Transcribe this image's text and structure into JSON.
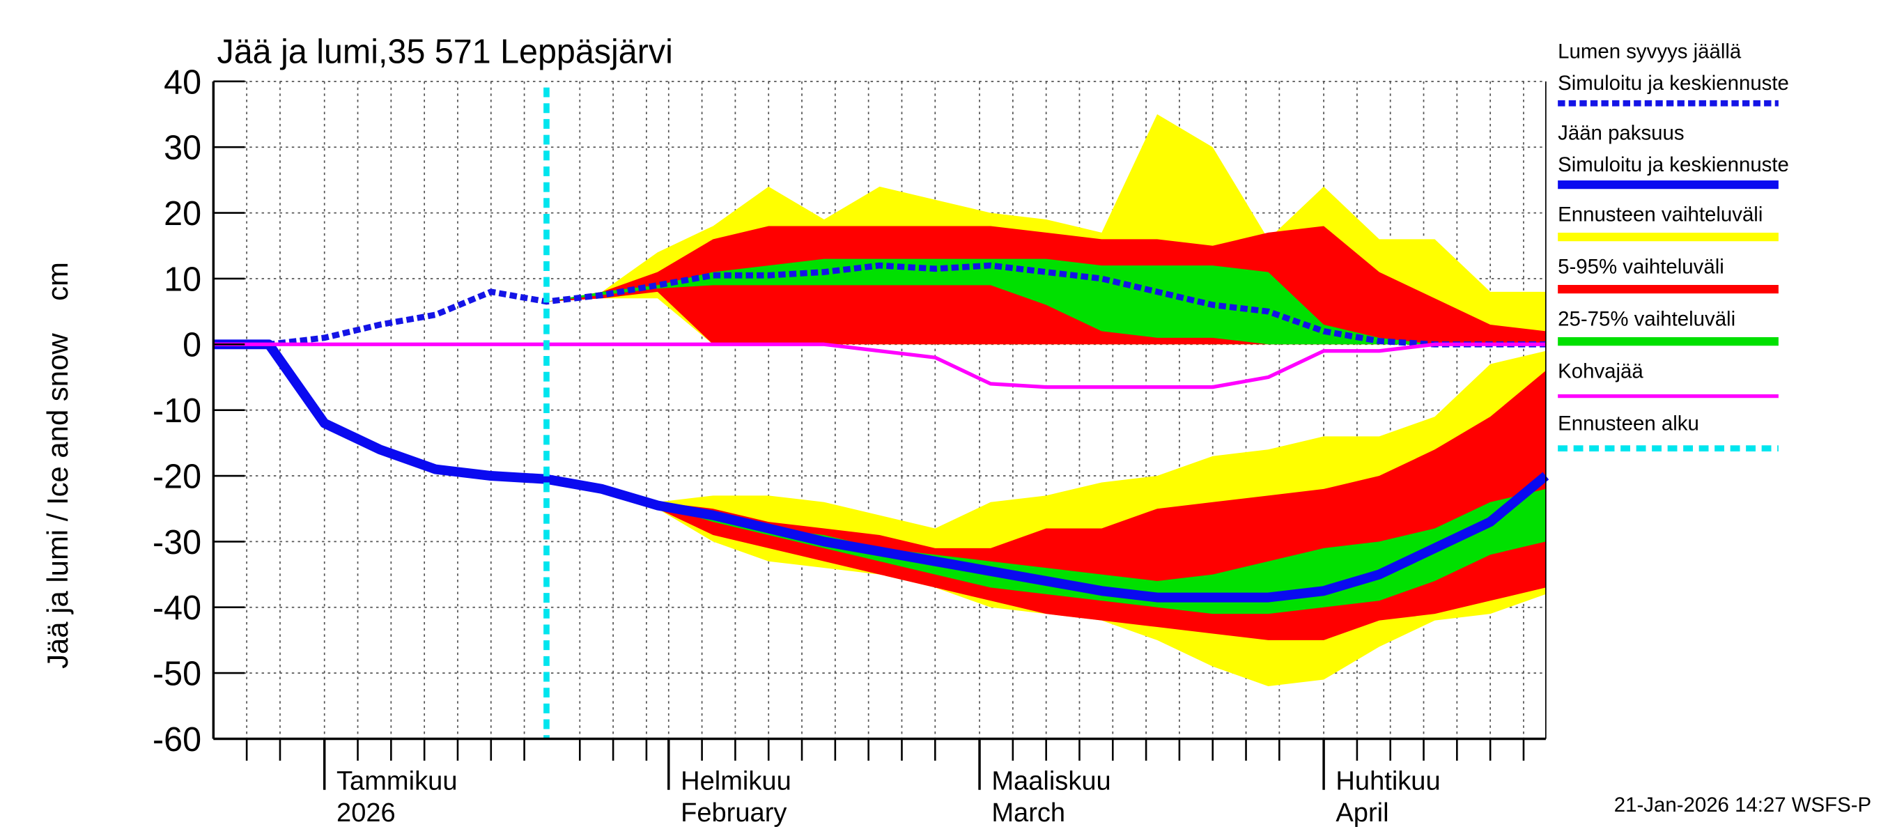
{
  "chart_data": {
    "type": "band-line",
    "title": "Jää ja lumi,35 571 Leppäsjärvi",
    "y_label": "Jää ja lumi / Ice and snow    cm",
    "footer": "21-Jan-2026 14:27 WSFS-P",
    "x": [
      0,
      5,
      10,
      15,
      20,
      25,
      30,
      35,
      40,
      45,
      50,
      55,
      60,
      65,
      70,
      75,
      80,
      85,
      90,
      95,
      100,
      105,
      110,
      115,
      120
    ],
    "xlim": [
      0,
      120
    ],
    "xticks": [
      {
        "value": 10,
        "label": "Tammikuu",
        "sublabel": "2026"
      },
      {
        "value": 41,
        "label": "Helmikuu",
        "sublabel": "February"
      },
      {
        "value": 69,
        "label": "Maaliskuu",
        "sublabel": "March"
      },
      {
        "value": 100,
        "label": "Huhtikuu",
        "sublabel": "April"
      }
    ],
    "xgrid": [
      3,
      6,
      13,
      16,
      19,
      22,
      25,
      28,
      33,
      36,
      39,
      44,
      47,
      50,
      53,
      56,
      59,
      62,
      65,
      72,
      75,
      78,
      81,
      84,
      87,
      90,
      93,
      96,
      103,
      106,
      109,
      112,
      115,
      118
    ],
    "ylim": [
      -60,
      40
    ],
    "yticks": [
      40,
      30,
      20,
      10,
      0,
      -10,
      -20,
      -30,
      -40,
      -50,
      -60
    ],
    "grid": true,
    "series": [
      {
        "name": "Lumen syvyys jäällä",
        "subname": "Simuloitu ja keskiennuste",
        "color": "#1414e6",
        "dashed": true,
        "width": 5,
        "values": [
          0,
          0,
          1,
          3,
          4.5,
          8,
          6.5,
          7.5,
          9,
          10.5,
          10.5,
          11,
          12,
          11.5,
          12,
          11,
          10,
          8,
          6,
          5,
          2,
          0.5,
          0,
          0,
          0
        ]
      },
      {
        "name": "Jään paksuus",
        "subname": "Simuloitu ja keskiennuste",
        "color": "#0a0af0",
        "dashed": false,
        "width": 8,
        "values": [
          0,
          0,
          -12,
          -16,
          -19,
          -20,
          -20.5,
          -22,
          -24.5,
          -26,
          -28,
          -30,
          -31.5,
          -33,
          -34.5,
          -36,
          -37.5,
          -38.5,
          -38.5,
          -38.5,
          -37.5,
          -35,
          -31,
          -27,
          -20
        ]
      },
      {
        "name": "Kohvajää",
        "color": "#ff00ff",
        "dashed": false,
        "width": 3,
        "values": [
          0,
          0,
          0,
          0,
          0,
          0,
          0,
          0,
          0,
          0,
          0,
          0,
          -1,
          -2,
          -6,
          -6.5,
          -6.5,
          -6.5,
          -6.5,
          -5,
          -1,
          -1,
          0,
          0,
          0
        ]
      }
    ],
    "bands": [
      {
        "name": "Ennusteen vaihteluväli",
        "color": "#ffff00",
        "snow_upper": [
          null,
          null,
          null,
          null,
          null,
          null,
          6.5,
          8,
          14,
          18,
          24,
          19,
          24,
          22,
          20,
          19,
          17,
          35,
          30,
          16,
          24,
          16,
          16,
          8,
          8
        ],
        "snow_lower": [
          null,
          null,
          null,
          null,
          null,
          null,
          6.5,
          7,
          7,
          0,
          0,
          0,
          0,
          0,
          0,
          0,
          0,
          0,
          0,
          0,
          0,
          0,
          0,
          0,
          0
        ],
        "ice_upper": [
          null,
          null,
          null,
          null,
          null,
          null,
          -20.5,
          -22,
          -24,
          -23,
          -23,
          -24,
          -26,
          -28,
          -24,
          -23,
          -21,
          -20,
          -17,
          -16,
          -14,
          -14,
          -11,
          -3,
          -1
        ],
        "ice_lower": [
          null,
          null,
          null,
          null,
          null,
          null,
          -20.5,
          -22,
          -25,
          -30,
          -33,
          -34,
          -35,
          -37,
          -40,
          -41,
          -42,
          -45,
          -49,
          -52,
          -51,
          -46,
          -42,
          -41,
          -38
        ]
      },
      {
        "name": "5-95% vaihteluväli",
        "color": "#ff0000",
        "snow_upper": [
          null,
          null,
          null,
          null,
          null,
          null,
          6.5,
          8,
          11,
          16,
          18,
          18,
          18,
          18,
          18,
          17,
          16,
          16,
          15,
          17,
          18,
          11,
          7,
          3,
          2
        ],
        "snow_lower": [
          null,
          null,
          null,
          null,
          null,
          null,
          6.5,
          7,
          8,
          0,
          0,
          0,
          0,
          0,
          0,
          0,
          0,
          0,
          0,
          0,
          0,
          0,
          0,
          0,
          0
        ],
        "ice_upper": [
          null,
          null,
          null,
          null,
          null,
          null,
          -20.5,
          -22,
          -24,
          -25,
          -27,
          -28,
          -29,
          -31,
          -31,
          -28,
          -28,
          -25,
          -24,
          -23,
          -22,
          -20,
          -16,
          -11,
          -4
        ],
        "ice_lower": [
          null,
          null,
          null,
          null,
          null,
          null,
          -20.5,
          -22,
          -25,
          -29,
          -31,
          -33,
          -35,
          -37,
          -39,
          -41,
          -42,
          -43,
          -44,
          -45,
          -45,
          -42,
          -41,
          -39,
          -37
        ]
      },
      {
        "name": "25-75% vaihteluväli",
        "color": "#00e000",
        "snow_upper": [
          null,
          null,
          null,
          null,
          null,
          null,
          6.5,
          8,
          9,
          11,
          12,
          13,
          13,
          13,
          13,
          13,
          12,
          12,
          12,
          11,
          3,
          1,
          0,
          0,
          0
        ],
        "snow_lower": [
          null,
          null,
          null,
          null,
          null,
          null,
          6.5,
          7.5,
          8.5,
          9,
          9,
          9,
          9,
          9,
          9,
          6,
          2,
          1,
          1,
          0,
          0,
          0,
          0,
          0,
          0
        ],
        "ice_upper": [
          null,
          null,
          null,
          null,
          null,
          null,
          -20.5,
          -22,
          -24,
          -26,
          -28,
          -29,
          -31,
          -32,
          -33,
          -34,
          -35,
          -36,
          -35,
          -33,
          -31,
          -30,
          -28,
          -24,
          -22
        ],
        "ice_lower": [
          null,
          null,
          null,
          null,
          null,
          null,
          -20.5,
          -22,
          -24.5,
          -27,
          -29,
          -31,
          -33,
          -35,
          -37,
          -38,
          -39,
          -40,
          -41,
          -41,
          -40,
          -39,
          -36,
          -32,
          -30
        ]
      }
    ],
    "forecast_start": {
      "name": "Ennusteen alku",
      "x": 30,
      "color": "#00e5ee"
    }
  }
}
